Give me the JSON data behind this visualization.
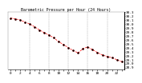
{
  "title": "Barometric Pressure per Hour (24 Hours)",
  "hours": [
    0,
    1,
    2,
    3,
    4,
    5,
    6,
    7,
    8,
    9,
    10,
    11,
    12,
    13,
    14,
    15,
    16,
    17,
    18,
    19,
    20,
    21,
    22,
    23
  ],
  "pressure": [
    30.15,
    30.13,
    30.1,
    30.05,
    30.0,
    29.93,
    29.85,
    29.78,
    29.72,
    29.65,
    29.55,
    29.48,
    29.4,
    29.33,
    29.27,
    29.38,
    29.42,
    29.35,
    29.28,
    29.22,
    29.18,
    29.15,
    29.1,
    29.05
  ],
  "ylim": [
    28.85,
    30.3
  ],
  "ytick_min": 28.9,
  "ytick_max": 30.3,
  "ytick_step": 0.1,
  "bg_color": "#ffffff",
  "line_color": "#ff0000",
  "marker_color": "#000000",
  "grid_color": "#999999",
  "title_color": "#000000",
  "tick_label_fontsize": 3.2,
  "title_fontsize": 3.5,
  "linewidth": 0.5,
  "markersize": 1.2,
  "grid_positions": [
    4,
    8,
    12,
    16,
    20
  ],
  "xtick_step": 1
}
